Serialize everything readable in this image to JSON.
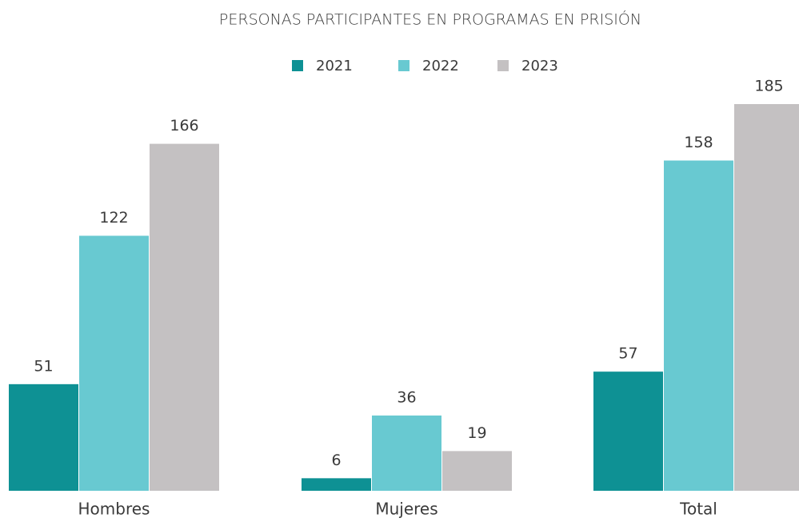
{
  "chart_data": {
    "type": "bar",
    "title": "PERSONAS PARTICIPANTES EN PROGRAMAS EN PRISIÓN",
    "categories": [
      "Hombres",
      "Mujeres",
      "Total"
    ],
    "series": [
      {
        "name": "2021",
        "color": "#0e9194",
        "values": [
          51,
          6,
          57
        ]
      },
      {
        "name": "2022",
        "color": "#68c9d1",
        "values": [
          122,
          36,
          158
        ]
      },
      {
        "name": "2023",
        "color": "#c4c1c2",
        "values": [
          166,
          19,
          185
        ]
      }
    ],
    "legend": "top",
    "grid": false
  }
}
